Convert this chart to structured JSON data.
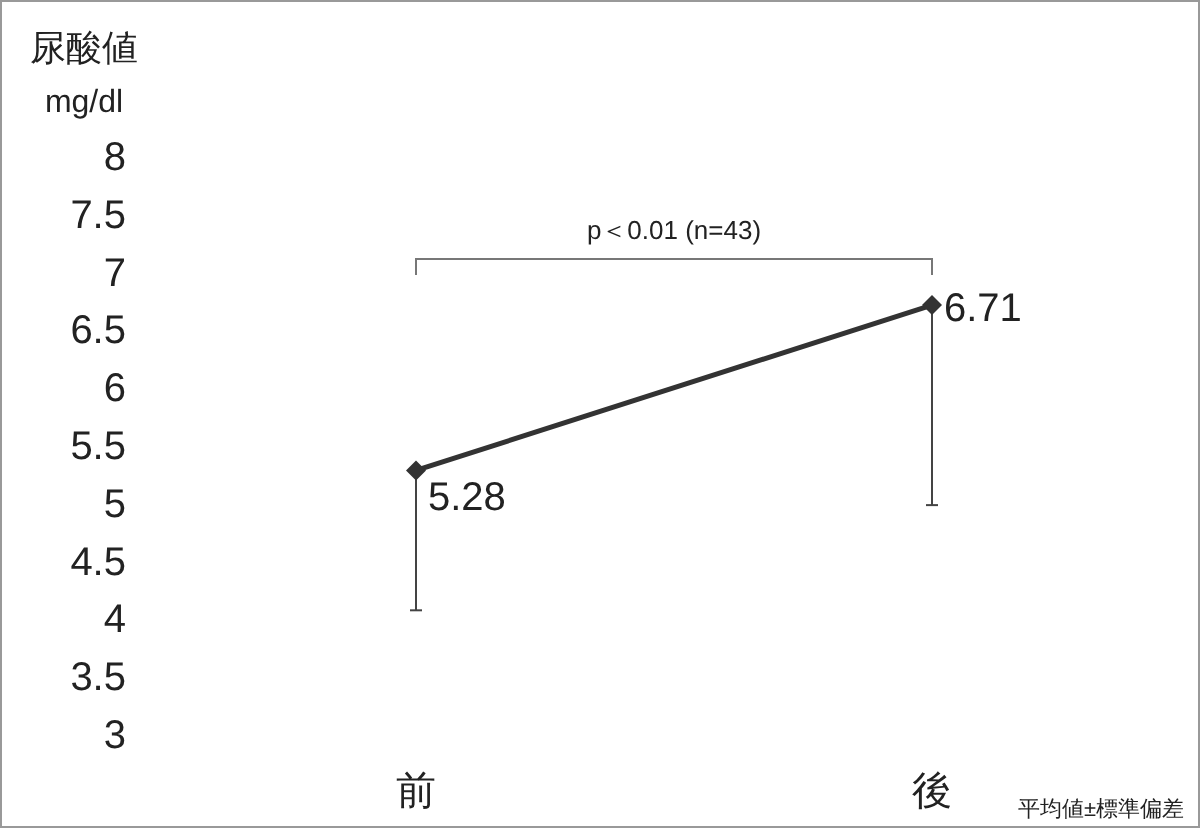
{
  "chart_data": {
    "type": "line",
    "ylabel": "尿酸値\nmg/dl",
    "categories": [
      "前",
      "後"
    ],
    "series": [
      {
        "color": "#333333",
        "values": [
          5.28,
          6.71
        ],
        "errors": [
          [
            4.07,
            5.28
          ],
          [
            4.98,
            6.71
          ]
        ]
      }
    ],
    "ylim": [
      3,
      8
    ],
    "yticks": [
      3,
      3.5,
      4,
      4.5,
      5,
      5.5,
      6,
      6.5,
      7,
      7.5,
      8
    ],
    "marker": "diamond",
    "line_style": "solid",
    "data_labels": true,
    "grid": false,
    "annotations": [
      "p＜0.01 (n=43)",
      "平均値±標準偏差"
    ]
  }
}
